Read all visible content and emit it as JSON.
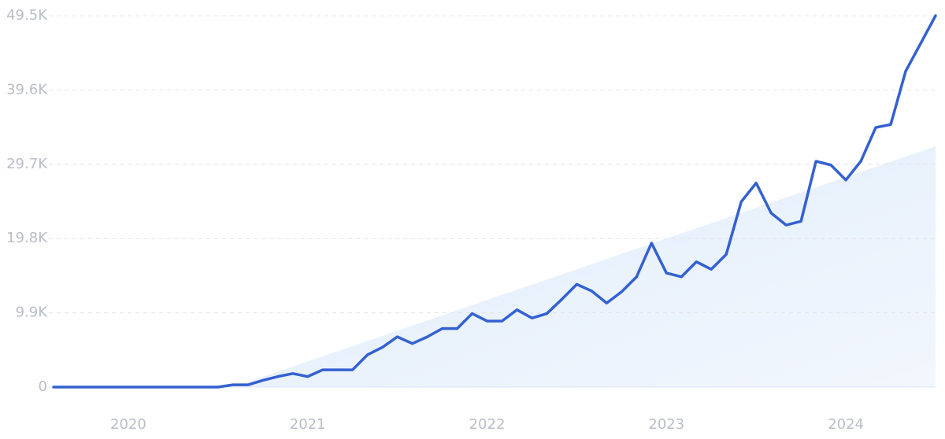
{
  "chart_data": {
    "type": "line",
    "categories": [
      null,
      null,
      null,
      null,
      null,
      "2020",
      null,
      null,
      null,
      null,
      null,
      null,
      null,
      null,
      null,
      null,
      null,
      "2021",
      null,
      null,
      null,
      null,
      null,
      null,
      null,
      null,
      null,
      null,
      null,
      "2022",
      null,
      null,
      null,
      null,
      null,
      null,
      null,
      null,
      null,
      null,
      null,
      "2023",
      null,
      null,
      null,
      null,
      null,
      null,
      null,
      null,
      null,
      null,
      null,
      "2024",
      null,
      null,
      null,
      null,
      null,
      null
    ],
    "series": [
      {
        "color": "#3461d1",
        "values": [
          0,
          0,
          0,
          0,
          0,
          0,
          0,
          0,
          0,
          0,
          0,
          0,
          300,
          300,
          900,
          1400,
          1800,
          1400,
          2300,
          2300,
          2300,
          4300,
          5300,
          6700,
          5800,
          6700,
          7800,
          7800,
          9800,
          8800,
          8800,
          10300,
          9200,
          9800,
          11700,
          13700,
          12800,
          11200,
          12700,
          14700,
          19200,
          15200,
          14700,
          16700,
          15700,
          17700,
          24700,
          27200,
          23200,
          21600,
          22100,
          30100,
          29600,
          27600,
          30100,
          34600,
          35000,
          42100,
          45800,
          49500
        ]
      },
      {
        "color": "#e6f0fc",
        "values": [
          null,
          null,
          null,
          null,
          null,
          null,
          null,
          null,
          null,
          null,
          null,
          null,
          0,
          683,
          1366,
          2049,
          2732,
          3415,
          4098,
          4781,
          5464,
          6147,
          6830,
          7513,
          8196,
          8879,
          9562,
          10245,
          10928,
          11611,
          12294,
          12977,
          13660,
          14343,
          15026,
          15709,
          16392,
          17075,
          17758,
          18441,
          19124,
          19807,
          20490,
          21173,
          21856,
          22539,
          23222,
          23905,
          24588,
          25271,
          25954,
          26637,
          27320,
          28003,
          28686,
          29369,
          30052,
          30735,
          31418,
          32101
        ]
      }
    ],
    "ylim": [
      0,
      49500
    ],
    "yticks": [
      0,
      {
        "value": 9900,
        "label": "9.9K"
      },
      {
        "value": 19800,
        "label": "19.8K"
      },
      {
        "value": 29700,
        "label": "29.7K"
      },
      {
        "value": 39600,
        "label": "39.6K"
      },
      {
        "value": 49500,
        "label": "49.5K"
      }
    ],
    "grid": true
  }
}
